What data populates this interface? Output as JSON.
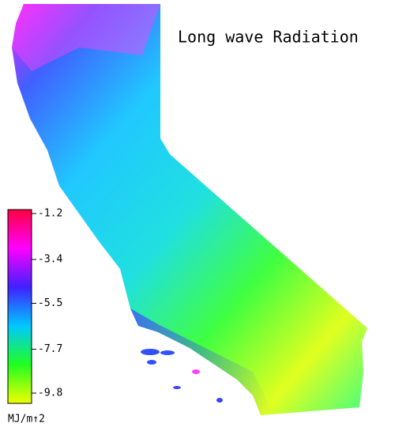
{
  "title": "Long wave Radiation",
  "colorbar": {
    "ticks": [
      -1.2,
      -3.4,
      -5.5,
      -7.7,
      -9.8
    ],
    "colors": [
      "#ff0040",
      "#ff00ff",
      "#4020ff",
      "#00c8ff",
      "#20ff20",
      "#f0ff00"
    ],
    "unit": "MJ/m↑2"
  }
}
